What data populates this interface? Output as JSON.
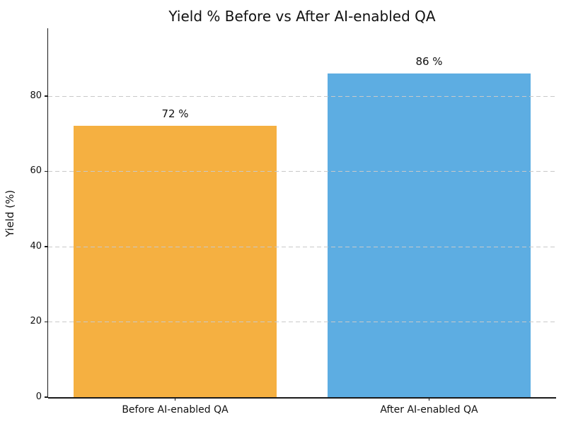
{
  "chart_data": {
    "type": "bar",
    "title": "Yield % Before vs After AI-enabled QA",
    "categories": [
      "Before AI-enabled QA",
      "After AI-enabled QA"
    ],
    "values": [
      72,
      86
    ],
    "value_labels": [
      "72 %",
      "86 %"
    ],
    "bar_colors": [
      "#F5B041",
      "#5DADE2"
    ],
    "xlabel": "",
    "ylabel": "Yield (%)",
    "ylim": [
      0,
      98
    ],
    "yticks": [
      0,
      20,
      40,
      60,
      80
    ],
    "grid": "horizontal dashed, drawn over bars",
    "grid_color": "#c9c9c9",
    "spine_color": "#1a1a1a",
    "background_color": "#ffffff",
    "legend": "none"
  }
}
